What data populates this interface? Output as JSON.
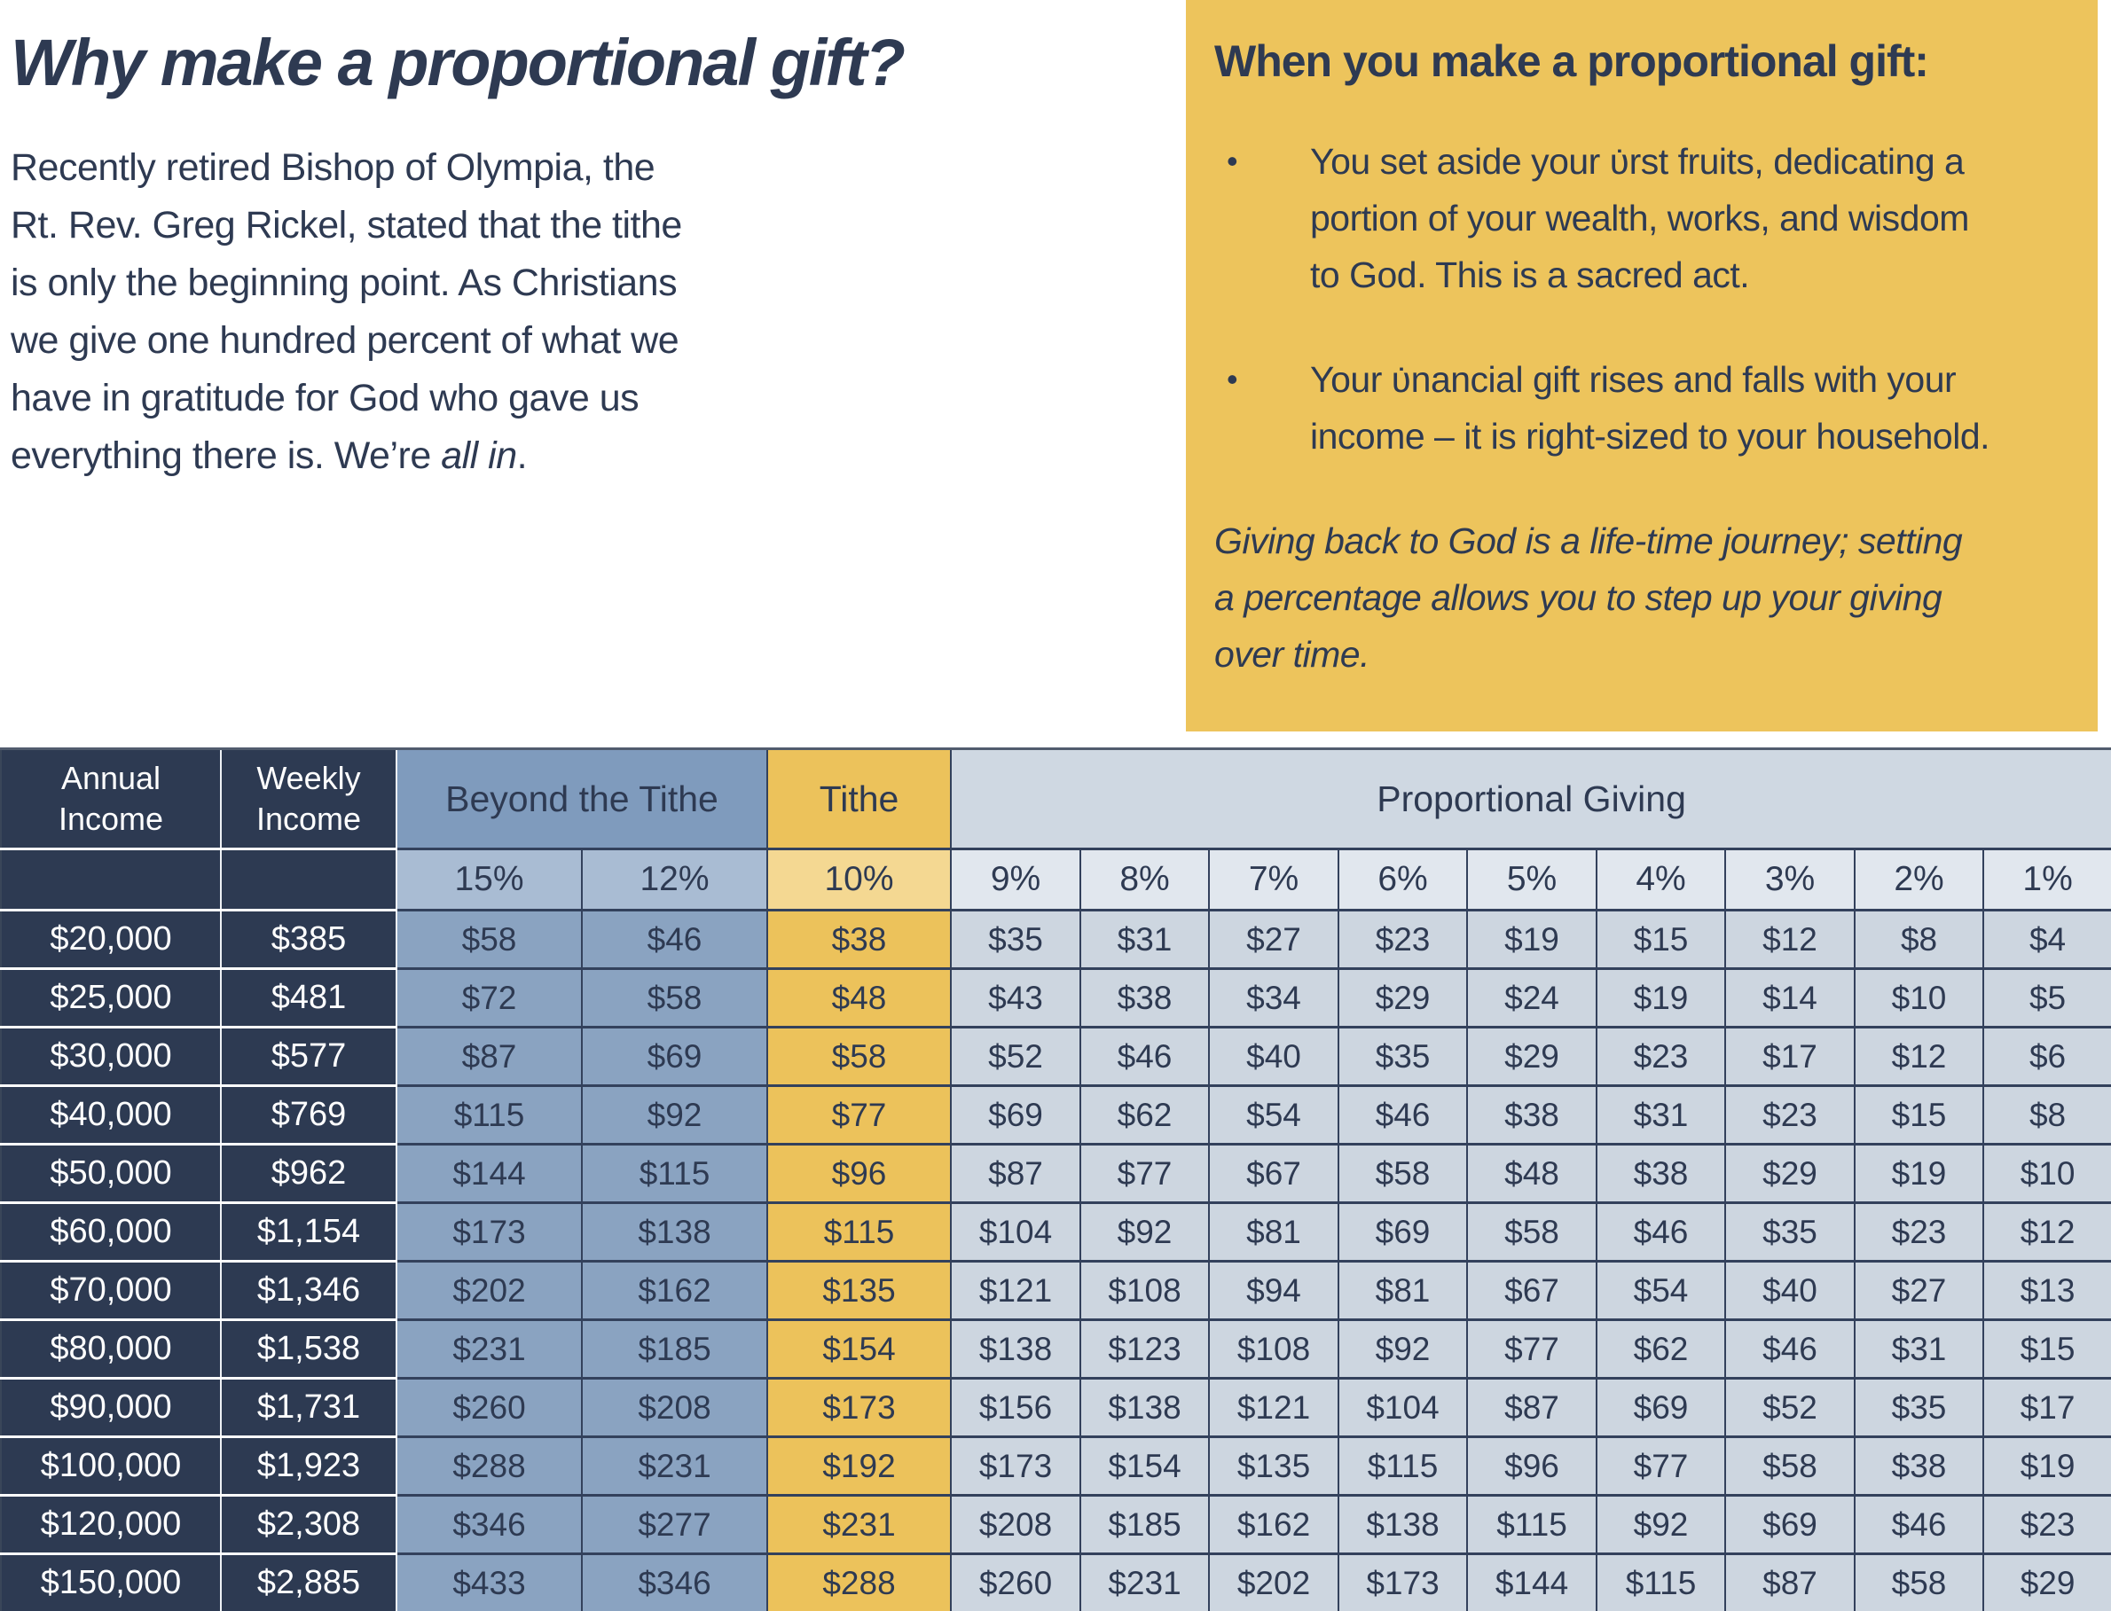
{
  "colors": {
    "navy": "#2d3a52",
    "gold": "#edc45c",
    "gold_light": "#f4d892",
    "steel_blue": "#8aa3c1",
    "steel_blue_light": "#a9bcd3",
    "steel_blue_header": "#7f9bbd",
    "proportional_band": "#cfd8e2",
    "proportional_light": "#e1e7ee",
    "proportional_data": "#cdd6e0",
    "text_navy": "#2e3a52",
    "border_dark": "#33415c"
  },
  "left_column": {
    "title": "Why make a proportional gift?",
    "paragraph_lines": [
      "Recently retired Bishop of Olympia, the",
      "Rt. Rev. Greg Rickel, stated that the tithe",
      "is only the beginning point. As Christians",
      "we give one hundred percent of what we",
      "have in gratitude for God who gave us"
    ],
    "last_line": {
      "prefix": "everything there is. We’re ",
      "italic": "all in",
      "suffix": "."
    }
  },
  "callout": {
    "heading": "When you make a proportional gift:",
    "bullet_char": "•",
    "bullets": [
      {
        "lines": [
          "You set aside your ʋ̇rst fruits, dedicating a",
          "portion of your wealth, works, and wisdom",
          "to God. This is a sacred act."
        ]
      },
      {
        "lines": [
          "Your ʋ̇nancial gift rises and falls with your",
          "income – it is right-sized to your household."
        ]
      }
    ],
    "note_lines": [
      "Giving back to God is a life-time journey; setting",
      "a percentage allows you to step up your giving",
      "over time."
    ]
  },
  "table": {
    "headers": {
      "annual_lines": [
        "Annual",
        "Income"
      ],
      "weekly_lines": [
        "Weekly",
        "Income"
      ],
      "beyond": "Beyond the Tithe",
      "tithe": "Tithe",
      "proportional": "Proportional Giving"
    },
    "percent_row": [
      "15%",
      "12%",
      "10%",
      "9%",
      "8%",
      "7%",
      "6%",
      "5%",
      "4%",
      "3%",
      "2%",
      "1%"
    ],
    "rows": [
      {
        "annual": "$20,000",
        "weekly": "$385",
        "values": [
          "$58",
          "$46",
          "$38",
          "$35",
          "$31",
          "$27",
          "$23",
          "$19",
          "$15",
          "$12",
          "$8",
          "$4"
        ]
      },
      {
        "annual": "$25,000",
        "weekly": "$481",
        "values": [
          "$72",
          "$58",
          "$48",
          "$43",
          "$38",
          "$34",
          "$29",
          "$24",
          "$19",
          "$14",
          "$10",
          "$5"
        ]
      },
      {
        "annual": "$30,000",
        "weekly": "$577",
        "values": [
          "$87",
          "$69",
          "$58",
          "$52",
          "$46",
          "$40",
          "$35",
          "$29",
          "$23",
          "$17",
          "$12",
          "$6"
        ]
      },
      {
        "annual": "$40,000",
        "weekly": "$769",
        "values": [
          "$115",
          "$92",
          "$77",
          "$69",
          "$62",
          "$54",
          "$46",
          "$38",
          "$31",
          "$23",
          "$15",
          "$8"
        ]
      },
      {
        "annual": "$50,000",
        "weekly": "$962",
        "values": [
          "$144",
          "$115",
          "$96",
          "$87",
          "$77",
          "$67",
          "$58",
          "$48",
          "$38",
          "$29",
          "$19",
          "$10"
        ]
      },
      {
        "annual": "$60,000",
        "weekly": "$1,154",
        "values": [
          "$173",
          "$138",
          "$115",
          "$104",
          "$92",
          "$81",
          "$69",
          "$58",
          "$46",
          "$35",
          "$23",
          "$12"
        ]
      },
      {
        "annual": "$70,000",
        "weekly": "$1,346",
        "values": [
          "$202",
          "$162",
          "$135",
          "$121",
          "$108",
          "$94",
          "$81",
          "$67",
          "$54",
          "$40",
          "$27",
          "$13"
        ]
      },
      {
        "annual": "$80,000",
        "weekly": "$1,538",
        "values": [
          "$231",
          "$185",
          "$154",
          "$138",
          "$123",
          "$108",
          "$92",
          "$77",
          "$62",
          "$46",
          "$31",
          "$15"
        ]
      },
      {
        "annual": "$90,000",
        "weekly": "$1,731",
        "values": [
          "$260",
          "$208",
          "$173",
          "$156",
          "$138",
          "$121",
          "$104",
          "$87",
          "$69",
          "$52",
          "$35",
          "$17"
        ]
      },
      {
        "annual": "$100,000",
        "weekly": "$1,923",
        "values": [
          "$288",
          "$231",
          "$192",
          "$173",
          "$154",
          "$135",
          "$115",
          "$96",
          "$77",
          "$58",
          "$38",
          "$19"
        ]
      },
      {
        "annual": "$120,000",
        "weekly": "$2,308",
        "values": [
          "$346",
          "$277",
          "$231",
          "$208",
          "$185",
          "$162",
          "$138",
          "$115",
          "$92",
          "$69",
          "$46",
          "$23"
        ]
      },
      {
        "annual": "$150,000",
        "weekly": "$2,885",
        "values": [
          "$433",
          "$346",
          "$288",
          "$260",
          "$231",
          "$202",
          "$173",
          "$144",
          "$115",
          "$87",
          "$58",
          "$29"
        ]
      }
    ]
  }
}
